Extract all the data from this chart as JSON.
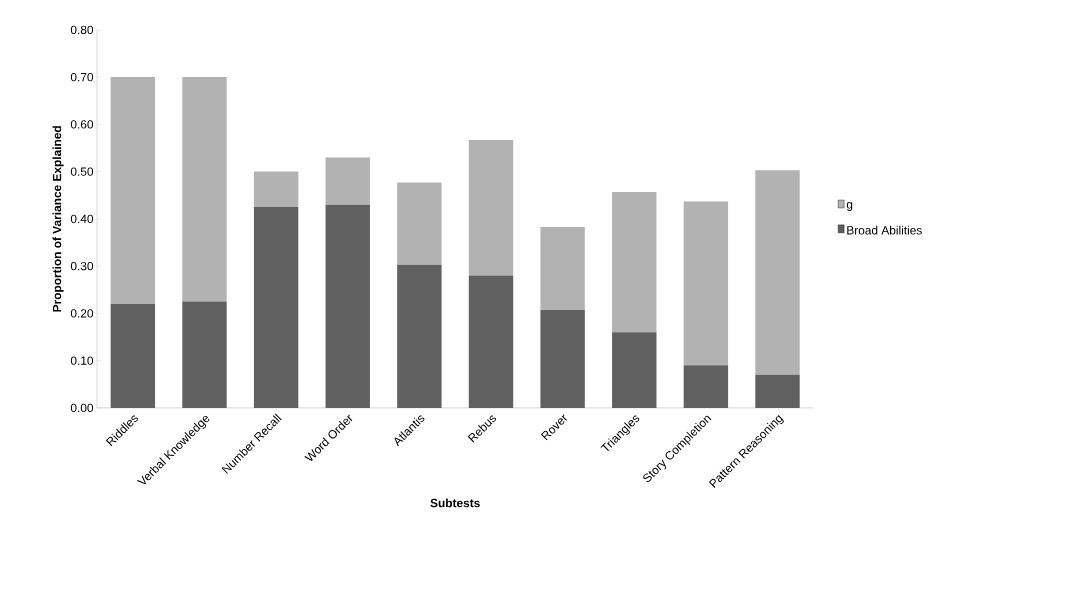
{
  "chart_data": {
    "type": "bar",
    "stacked": true,
    "xlabel": "Subtests",
    "ylabel": "Proportion of Variance Explained",
    "categories": [
      "Riddles",
      "Verbal Knowledge",
      "Number Recall",
      "Word Order",
      "Atlantis",
      "Rebus",
      "Rover",
      "Triangles",
      "Story Completion",
      "Pattern Reasoning"
    ],
    "series": [
      {
        "name": "Broad Abilities",
        "color": "#606060",
        "values": [
          0.22,
          0.225,
          0.425,
          0.43,
          0.303,
          0.28,
          0.207,
          0.16,
          0.09,
          0.07
        ]
      },
      {
        "name": "g",
        "color": "#b2b2b2",
        "values": [
          0.48,
          0.475,
          0.075,
          0.1,
          0.174,
          0.287,
          0.176,
          0.297,
          0.347,
          0.433
        ]
      }
    ],
    "ylim": [
      0,
      0.8
    ],
    "yticks": [
      {
        "value": 0,
        "label": "0.00"
      },
      {
        "value": 0.1,
        "label": "0.10"
      },
      {
        "value": 0.2,
        "label": "0.20"
      },
      {
        "value": 0.3,
        "label": "0.30"
      },
      {
        "value": 0.4,
        "label": "0.40"
      },
      {
        "value": 0.5,
        "label": "0.50"
      },
      {
        "value": 0.6,
        "label": "0.60"
      },
      {
        "value": 0.7,
        "label": "0.70"
      },
      {
        "value": 0.8,
        "label": "0.80"
      }
    ],
    "grid": false,
    "legend": "right"
  }
}
